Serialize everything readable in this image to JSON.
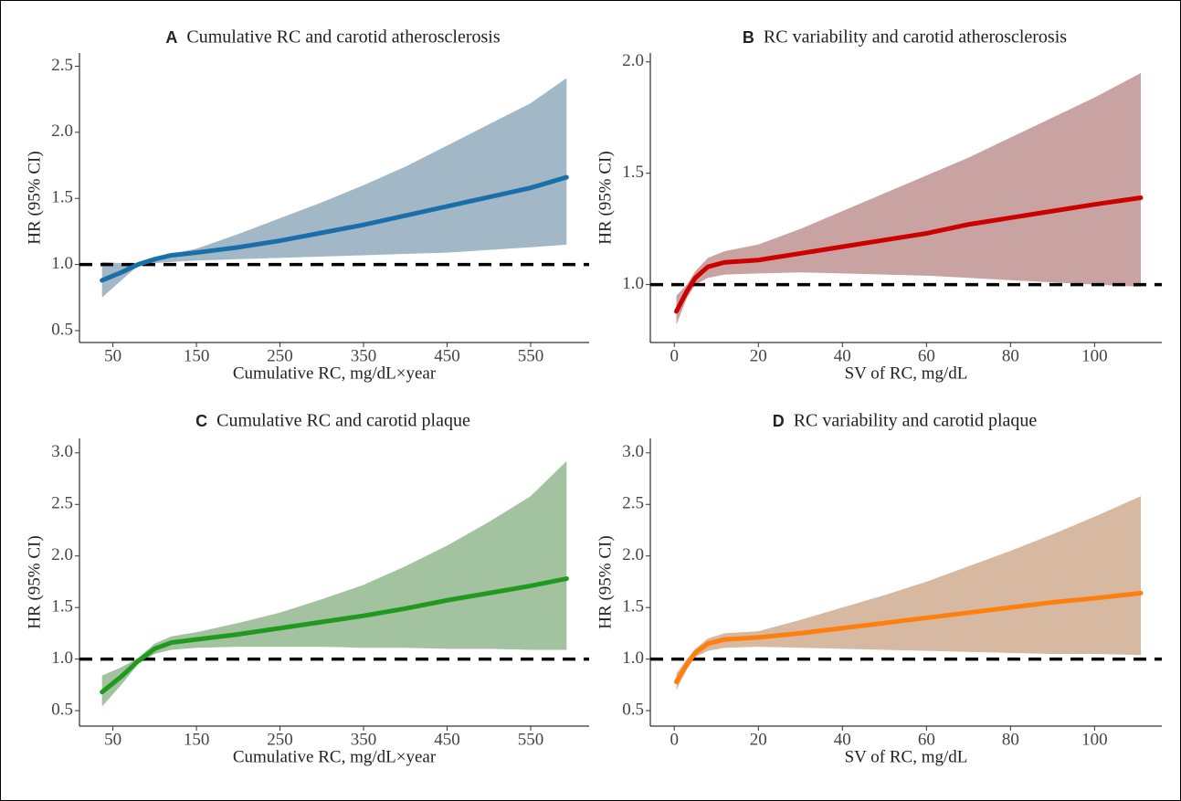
{
  "chart_data": [
    {
      "type": "line",
      "panel": "A",
      "title": "Cumulative RC and carotid atherosclerosis",
      "x_label": "Cumulative RC, mg/dL×year",
      "y_label": "HR (95% CI)",
      "x": [
        37,
        60,
        80,
        100,
        120,
        150,
        200,
        250,
        300,
        350,
        400,
        450,
        500,
        550,
        593
      ],
      "values": [
        0.88,
        0.94,
        1.0,
        1.04,
        1.07,
        1.09,
        1.13,
        1.18,
        1.24,
        1.3,
        1.37,
        1.44,
        1.51,
        1.58,
        1.66
      ],
      "lower": [
        0.75,
        0.88,
        0.99,
        1.01,
        1.02,
        1.03,
        1.04,
        1.05,
        1.06,
        1.07,
        1.08,
        1.09,
        1.11,
        1.13,
        1.15
      ],
      "upper": [
        1.02,
        1.01,
        1.01,
        1.05,
        1.08,
        1.12,
        1.23,
        1.35,
        1.47,
        1.6,
        1.74,
        1.9,
        2.06,
        2.22,
        2.41
      ],
      "color": "#1a6fa8",
      "band_color": "#a3b8c6",
      "ref_line": 1,
      "xlim": [
        10,
        620
      ],
      "xticks": [
        50,
        150,
        250,
        350,
        450,
        550
      ],
      "ylim": [
        0.41,
        2.6
      ],
      "yticks": [
        0.5,
        {
          "value": 1,
          "label": "1.0"
        },
        1.5,
        {
          "value": 2,
          "label": "2.0"
        },
        2.5
      ]
    },
    {
      "type": "line",
      "panel": "B",
      "title": "RC variability and carotid atherosclerosis",
      "x_label": "SV of RC, mg/dL",
      "y_label": "HR (95% CI)",
      "x": [
        0.5,
        3,
        5,
        8,
        12,
        20,
        30,
        40,
        50,
        60,
        70,
        80,
        90,
        100,
        111
      ],
      "values": [
        0.88,
        0.97,
        1.03,
        1.08,
        1.1,
        1.11,
        1.14,
        1.17,
        1.2,
        1.23,
        1.27,
        1.3,
        1.33,
        1.36,
        1.39
      ],
      "lower": [
        0.82,
        0.94,
        1.0,
        1.03,
        1.045,
        1.05,
        1.055,
        1.05,
        1.045,
        1.04,
        1.03,
        1.02,
        1.01,
        1.0,
        0.99
      ],
      "upper": [
        0.95,
        1.0,
        1.06,
        1.12,
        1.15,
        1.18,
        1.25,
        1.33,
        1.41,
        1.49,
        1.57,
        1.66,
        1.75,
        1.84,
        1.95
      ],
      "color": "#cc0000",
      "band_color": "#c9a2a2",
      "ref_line": 1,
      "xlim": [
        -5.7,
        116
      ],
      "xticks": [
        0,
        20,
        40,
        60,
        80,
        100
      ],
      "ylim": [
        0.74,
        2.04
      ],
      "yticks": [
        {
          "value": 1,
          "label": "1.0"
        },
        1.5,
        {
          "value": 2,
          "label": "2.0"
        }
      ]
    },
    {
      "type": "line",
      "panel": "C",
      "title": "Cumulative RC and carotid plaque",
      "x_label": "Cumulative RC, mg/dL×year",
      "y_label": "HR (95% CI)",
      "x": [
        37,
        60,
        80,
        100,
        120,
        150,
        200,
        250,
        300,
        350,
        400,
        450,
        500,
        550,
        593
      ],
      "values": [
        0.68,
        0.83,
        0.98,
        1.1,
        1.16,
        1.19,
        1.24,
        1.3,
        1.36,
        1.42,
        1.49,
        1.57,
        1.64,
        1.71,
        1.78
      ],
      "lower": [
        0.54,
        0.75,
        0.95,
        1.05,
        1.09,
        1.11,
        1.12,
        1.12,
        1.12,
        1.11,
        1.11,
        1.1,
        1.1,
        1.09,
        1.09
      ],
      "upper": [
        0.84,
        0.92,
        1.01,
        1.15,
        1.22,
        1.26,
        1.35,
        1.45,
        1.58,
        1.72,
        1.9,
        2.1,
        2.33,
        2.58,
        2.92
      ],
      "color": "#1f9a1f",
      "band_color": "#a2c2a0",
      "ref_line": 1,
      "xlim": [
        10,
        620
      ],
      "xticks": [
        50,
        150,
        250,
        350,
        450,
        550
      ],
      "ylim": [
        0.35,
        3.14
      ],
      "yticks": [
        0.5,
        {
          "value": 1,
          "label": "1.0"
        },
        1.5,
        {
          "value": 2,
          "label": "2.0"
        },
        2.5,
        {
          "value": 3,
          "label": "3.0"
        }
      ]
    },
    {
      "type": "line",
      "panel": "D",
      "title": "RC variability and carotid plaque",
      "x_label": "SV of RC, mg/dL",
      "y_label": "HR (95% CI)",
      "x": [
        0.5,
        3,
        5,
        8,
        12,
        20,
        30,
        40,
        50,
        60,
        70,
        80,
        90,
        100,
        111
      ],
      "values": [
        0.78,
        0.95,
        1.06,
        1.15,
        1.19,
        1.21,
        1.25,
        1.3,
        1.35,
        1.4,
        1.45,
        1.5,
        1.55,
        1.59,
        1.64
      ],
      "lower": [
        0.7,
        0.9,
        1.02,
        1.08,
        1.11,
        1.12,
        1.11,
        1.1,
        1.09,
        1.08,
        1.07,
        1.06,
        1.05,
        1.05,
        1.04
      ],
      "upper": [
        0.86,
        1.0,
        1.1,
        1.2,
        1.25,
        1.27,
        1.38,
        1.5,
        1.62,
        1.75,
        1.9,
        2.05,
        2.21,
        2.38,
        2.58
      ],
      "color": "#ff7f0e",
      "band_color": "#d6b9a0",
      "ref_line": 1,
      "xlim": [
        -5.7,
        116
      ],
      "xticks": [
        0,
        20,
        40,
        60,
        80,
        100
      ],
      "ylim": [
        0.35,
        3.14
      ],
      "yticks": [
        0.5,
        {
          "value": 1,
          "label": "1.0"
        },
        1.5,
        {
          "value": 2,
          "label": "2.0"
        },
        2.5,
        {
          "value": 3,
          "label": "3.0"
        }
      ]
    }
  ]
}
